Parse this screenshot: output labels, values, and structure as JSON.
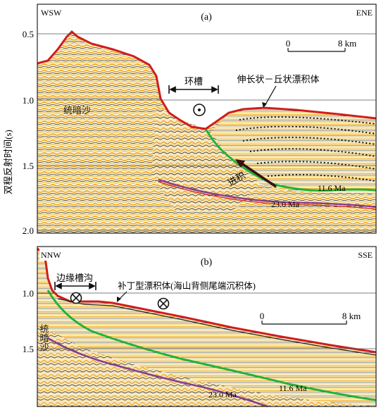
{
  "y_axis_title": "双程反射时间(s)",
  "colors": {
    "seabed": "#d01d1d",
    "horizon_11_6": "#22b33a",
    "horizon_23_0": "#8a3c8c",
    "seismic_orange": "#f2a51c",
    "seismic_yellow": "#f7e08a",
    "frame": "#222222",
    "grid": "#555555"
  },
  "panel_a": {
    "label": "(a)",
    "left_dir": "WSW",
    "right_dir": "ENE",
    "ticks": [
      "0.5",
      "1.0",
      "1.5",
      "2.0"
    ],
    "scale_start": "0",
    "scale_end": "8 km",
    "moat_label": "环槽",
    "drift_label": "伸长状－丘状漂积体",
    "unconformity_label": "统暗沙",
    "channel_label": "进积",
    "horizon_upper": "11.6 Ma",
    "horizon_lower": "23.0 Ma",
    "flow_symbol": "out-of-page"
  },
  "panel_b": {
    "label": "(b)",
    "left_dir": "NNW",
    "right_dir": "SSE",
    "ticks": [
      "1.0",
      "1.5"
    ],
    "scale_start": "0",
    "scale_end": "8 km",
    "moat_label": "边缘槽沟",
    "drift_label": "补丁型漂积体(海山背侧尾端沉积体)",
    "unconformity_label": "统暗沙",
    "horizon_upper": "11.6 Ma",
    "horizon_lower": "23.0 Ma",
    "flow_symbol": "into-page"
  }
}
